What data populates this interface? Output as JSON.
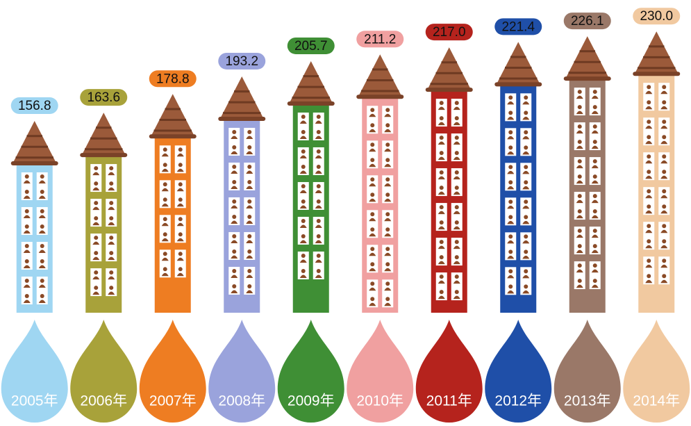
{
  "chart_data": {
    "type": "bar",
    "categories": [
      "2005年",
      "2006年",
      "2007年",
      "2008年",
      "2009年",
      "2010年",
      "2011年",
      "2012年",
      "2013年",
      "2014年"
    ],
    "values": [
      156.8,
      163.6,
      178.8,
      193.2,
      205.7,
      211.2,
      217.0,
      221.4,
      226.1,
      230.0
    ],
    "value_labels": [
      "156.8",
      "163.6",
      "178.8",
      "193.2",
      "205.7",
      "211.2",
      "217.0",
      "221.4",
      "226.1",
      "230.0"
    ],
    "colors": [
      "#9fd6f2",
      "#a8a23a",
      "#ee7d22",
      "#9aa3dc",
      "#3f8f35",
      "#f0a0a0",
      "#b5231d",
      "#1f4fa8",
      "#9a7868",
      "#f1c9a0"
    ]
  }
}
